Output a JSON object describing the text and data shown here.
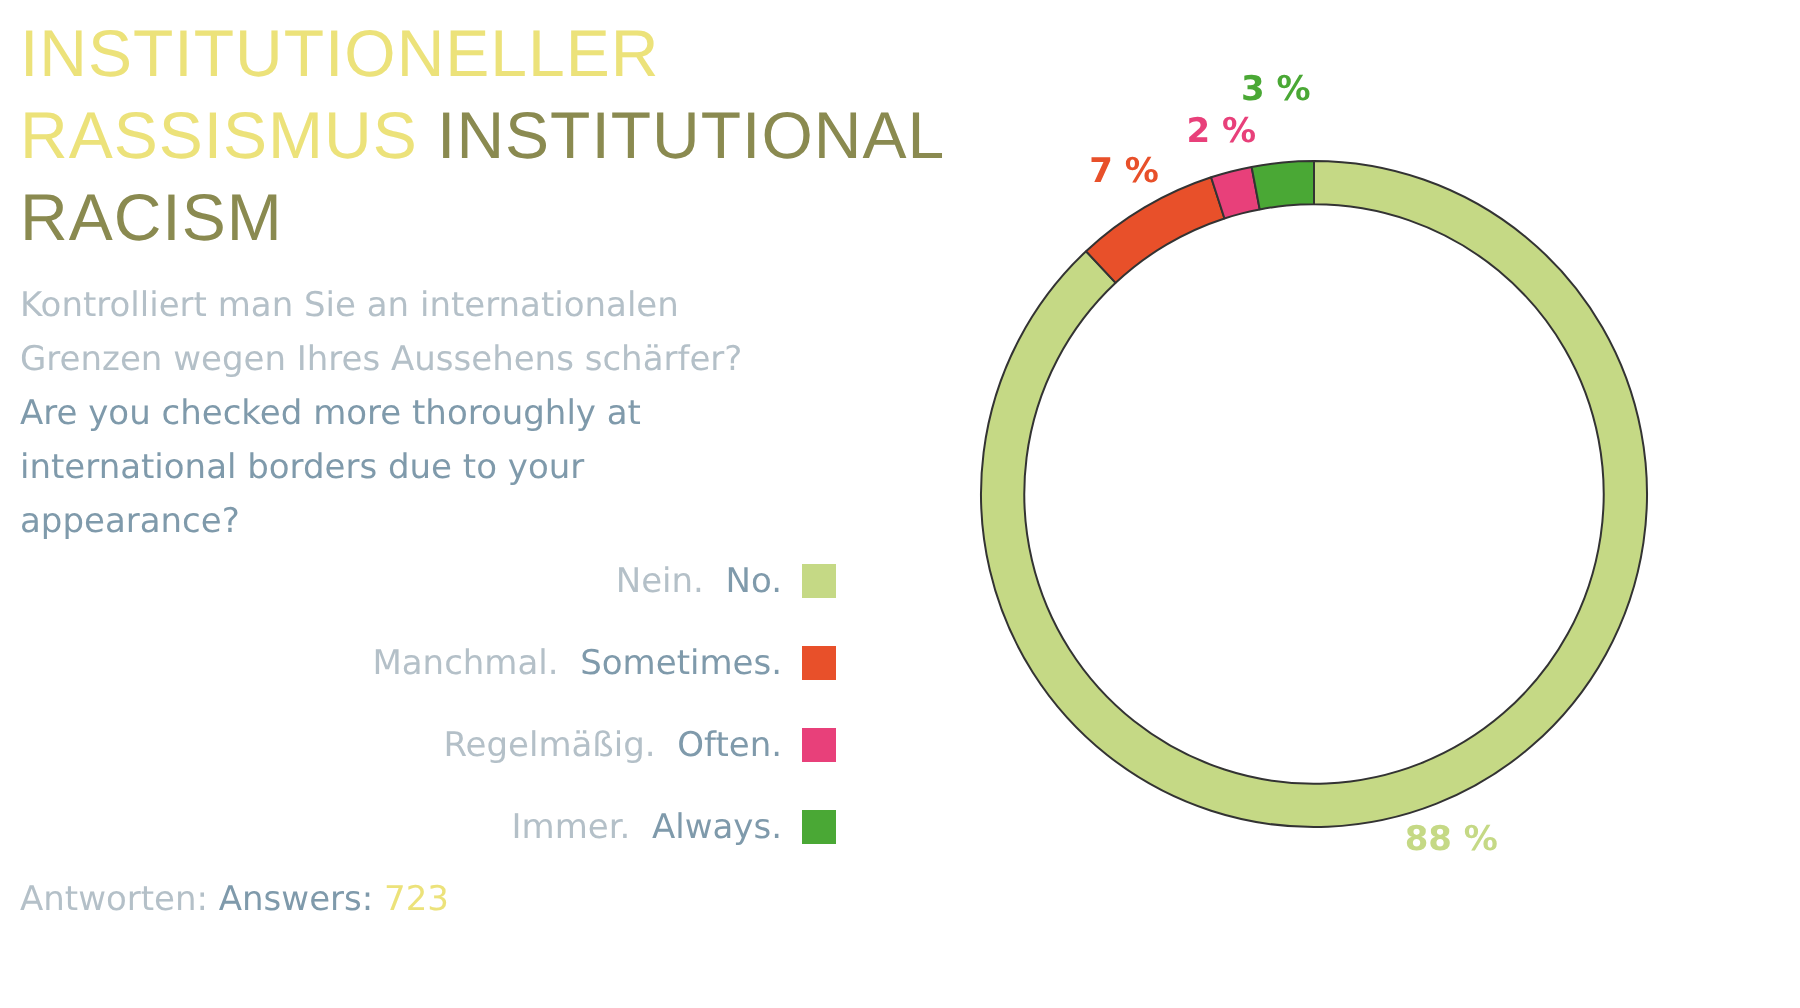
{
  "chart_data": {
    "type": "donut",
    "title": "INSTITUTIONELLER RASSISMUS",
    "subtitle": "INSTITUTIONAL RACISM",
    "annotations": [
      "Kontrolliert man Sie an internationalen Grenzen wegen Ihres Aussehens schärfer?",
      "Are you checked more thoroughly at international borders due to your appearance?",
      "Antworten:",
      "Answers:",
      "723"
    ],
    "categories": [
      "Nein. No.",
      "Manchmal. Sometimes.",
      "Regelmäßig. Often.",
      "Immer. Always."
    ],
    "values": [
      88,
      7,
      2,
      3
    ],
    "colors": [
      "#c5d985",
      "#e8502a",
      "#e8407a",
      "#4aa835"
    ],
    "value_labels": [
      "88 %",
      "7 %",
      "2 %",
      "3 %"
    ],
    "legend": "left"
  }
}
